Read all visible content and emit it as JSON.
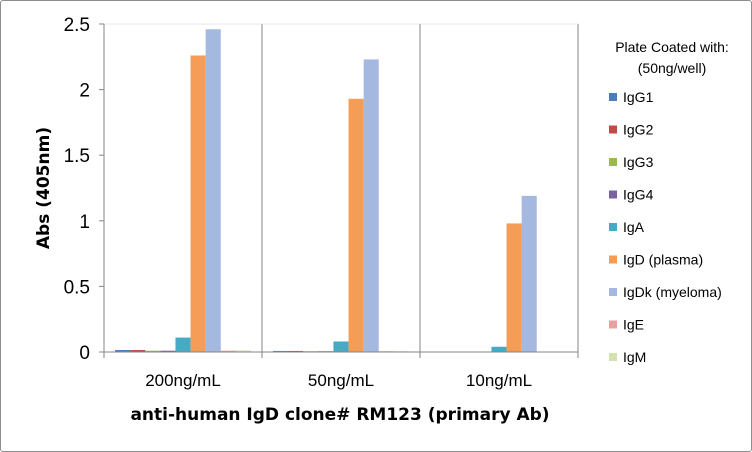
{
  "chart_data": {
    "type": "bar",
    "title": "",
    "xlabel": "anti-human IgD clone# RM123 (primary Ab)",
    "ylabel": "Abs (405nm)",
    "ylim": [
      0,
      2.5
    ],
    "yticks": [
      0,
      0.5,
      1,
      1.5,
      2,
      2.5
    ],
    "ytick_labels": [
      "0",
      "0.5",
      "1",
      "1.5",
      "2",
      "2.5"
    ],
    "categories": [
      "200ng/mL",
      "50ng/mL",
      "10ng/mL"
    ],
    "grid": "vertical category separators",
    "legend": {
      "position": "right",
      "title_lines": [
        "Plate Coated with:",
        "(50ng/well)"
      ]
    },
    "series": [
      {
        "name": "IgG1",
        "color": "#4a7ebb",
        "values": [
          0.015,
          0.008,
          0.0
        ]
      },
      {
        "name": "IgG2",
        "color": "#be4b48",
        "values": [
          0.015,
          0.008,
          0.0
        ]
      },
      {
        "name": "IgG3",
        "color": "#98b954",
        "values": [
          0.01,
          0.006,
          0.0
        ]
      },
      {
        "name": "IgG4",
        "color": "#7d60a0",
        "values": [
          0.01,
          0.006,
          0.0
        ]
      },
      {
        "name": "IgA",
        "color": "#46aac5",
        "values": [
          0.11,
          0.08,
          0.04
        ]
      },
      {
        "name": "IgD (plasma)",
        "color": "#f59d56",
        "values": [
          2.26,
          1.93,
          0.98
        ]
      },
      {
        "name": "IgDk (myeloma)",
        "color": "#a5b8e0",
        "values": [
          2.46,
          2.23,
          1.19
        ]
      },
      {
        "name": "IgE",
        "color": "#e6a19f",
        "values": [
          0.01,
          0.006,
          0.0
        ]
      },
      {
        "name": "IgM",
        "color": "#d2e3b0",
        "values": [
          0.012,
          0.006,
          0.0
        ]
      }
    ]
  }
}
